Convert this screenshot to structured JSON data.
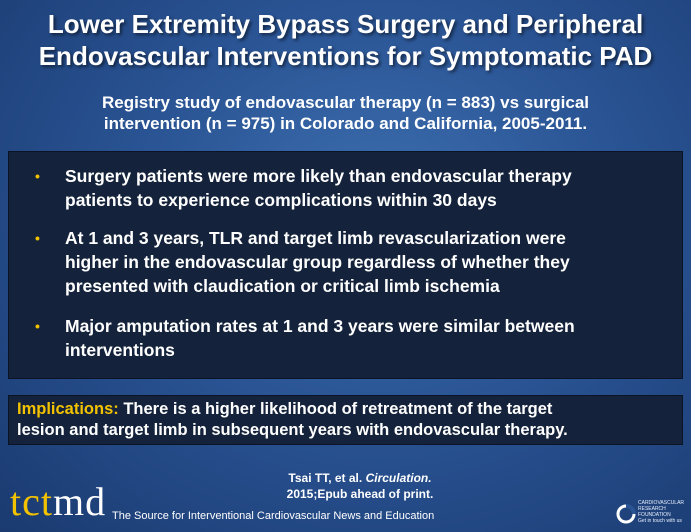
{
  "title_line1": "Lower Extremity Bypass Surgery and Peripheral",
  "title_line2": "Endovascular Interventions for Symptomatic PAD",
  "subtitle_line1": "Registry study of endovascular therapy (n = 883) vs surgical",
  "subtitle_line2": "intervention (n = 975) in Colorado and California, 2005-2011.",
  "bullets": [
    {
      "line1": "Surgery patients were more likely than endovascular therapy",
      "line2": "patients to experience complications within 30 days",
      "line3": ""
    },
    {
      "line1": "At 1 and 3 years, TLR and target limb revascularization were",
      "line2": "higher in the endovascular group regardless of whether they",
      "line3": "presented with claudication or critical limb ischemia"
    },
    {
      "line1": "Major amputation rates at 1 and 3 years were similar between",
      "line2": "interventions",
      "line3": ""
    }
  ],
  "bullet_glyph": "•",
  "implications": {
    "label": "Implications:",
    "text_line1": " There is a higher likelihood of retreatment of the target",
    "text_line2": "lesion and target limb in subsequent years with endovascular therapy."
  },
  "citation": {
    "authors": "Tsai TT, et al. ",
    "journal": "Circulation.",
    "line2": "2015;Epub ahead of print."
  },
  "footer": {
    "logo_tct": "tct",
    "logo_md": "md",
    "tagline": "The Source for Interventional Cardiovascular News and Education",
    "crf_line1": "CARDIOVASCULAR",
    "crf_line2": "RESEARCH",
    "crf_line3": "FOUNDATION",
    "crf_line4": "Get in touch with us"
  },
  "colors": {
    "accent": "#f2c200",
    "panel": "#14233b",
    "background": "#2a5494"
  }
}
